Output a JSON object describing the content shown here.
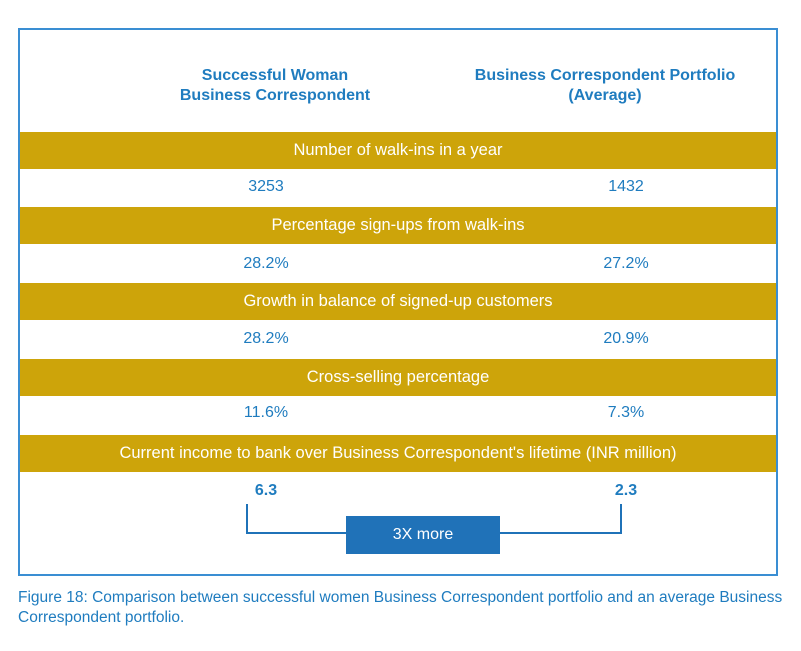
{
  "header": {
    "left_title_line1": "Successful Woman",
    "left_title_line2": "Business Correspondent",
    "right_title_line1": "Business Correspondent Portfolio",
    "right_title_line2": "(Average)"
  },
  "rows": [
    {
      "label": "Number of walk-ins in a year",
      "left": "3253",
      "right": "1432"
    },
    {
      "label": "Percentage sign-ups from walk-ins",
      "left": "28.2%",
      "right": "27.2%"
    },
    {
      "label": "Growth in balance of signed-up customers",
      "left": "28.2%",
      "right": "20.9%"
    },
    {
      "label": "Cross-selling percentage",
      "left": "11.6%",
      "right": "7.3%"
    },
    {
      "label": "Current income to bank over Business Correspondent's lifetime (INR million)",
      "left": "6.3",
      "right": "2.3"
    }
  ],
  "comparison_badge": "3X more",
  "caption": "Figure 18: Comparison between successful women Business Correspondent portfolio and an average Business Correspondent portfolio.",
  "colors": {
    "band": "#cda40a",
    "accent_blue": "#1f7cbf",
    "badge_blue": "#2072b8"
  }
}
